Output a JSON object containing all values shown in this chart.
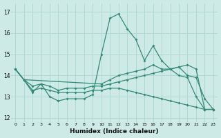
{
  "xlabel": "Humidex (Indice chaleur)",
  "background_color": "#ceeae7",
  "grid_color": "#b0d8d4",
  "line_color": "#2e8b78",
  "xlim": [
    -0.5,
    23.5
  ],
  "ylim": [
    11.8,
    17.4
  ],
  "yticks": [
    12,
    13,
    14,
    15,
    16,
    17
  ],
  "series": [
    {
      "x": [
        0,
        1,
        2,
        3,
        4,
        5,
        6,
        7,
        8,
        9,
        10,
        11,
        12,
        13,
        14,
        15,
        16,
        17,
        18,
        19,
        20,
        21,
        22,
        23
      ],
      "y": [
        14.3,
        13.8,
        13.2,
        13.6,
        13.0,
        12.8,
        12.9,
        12.9,
        12.9,
        13.1,
        15.0,
        16.7,
        16.9,
        16.2,
        15.7,
        14.7,
        15.4,
        14.7,
        14.3,
        14.0,
        13.9,
        13.0,
        12.4,
        12.4
      ]
    },
    {
      "x": [
        0,
        1,
        10,
        11,
        12,
        13,
        14,
        15,
        16,
        17,
        18,
        19,
        20,
        21,
        22,
        23
      ],
      "y": [
        14.3,
        13.8,
        13.6,
        13.8,
        14.0,
        14.1,
        14.2,
        14.3,
        14.5,
        14.3,
        14.3,
        14.4,
        14.0,
        13.9,
        12.9,
        12.4
      ]
    },
    {
      "x": [
        0,
        1,
        2,
        3,
        4,
        5,
        6,
        7,
        8,
        9,
        10,
        11,
        12,
        13,
        14,
        15,
        16,
        17,
        18,
        19,
        20,
        21,
        22,
        23
      ],
      "y": [
        14.3,
        13.8,
        13.3,
        13.4,
        13.3,
        13.2,
        13.2,
        13.2,
        13.2,
        13.3,
        13.3,
        13.4,
        13.4,
        13.3,
        13.2,
        13.1,
        13.0,
        12.9,
        12.8,
        12.7,
        12.6,
        12.5,
        12.4,
        12.4
      ]
    },
    {
      "x": [
        0,
        1,
        2,
        3,
        4,
        5,
        6,
        7,
        8,
        9,
        10,
        11,
        12,
        13,
        14,
        15,
        16,
        17,
        18,
        19,
        20,
        21,
        22,
        23
      ],
      "y": [
        14.3,
        13.8,
        13.5,
        13.6,
        13.5,
        13.3,
        13.4,
        13.4,
        13.4,
        13.5,
        13.5,
        13.6,
        13.7,
        13.8,
        13.9,
        14.0,
        14.1,
        14.2,
        14.3,
        14.4,
        14.5,
        14.3,
        12.4,
        12.4
      ]
    }
  ]
}
